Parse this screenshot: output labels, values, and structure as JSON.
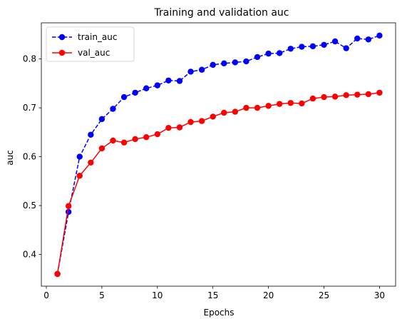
{
  "chart_data": {
    "type": "line",
    "title": "Training and validation auc",
    "xlabel": "Epochs",
    "ylabel": "auc",
    "xlim": [
      -0.45,
      31.45
    ],
    "ylim": [
      0.335,
      0.874
    ],
    "xticks": [
      0,
      5,
      10,
      15,
      20,
      25,
      30
    ],
    "yticks": [
      0.4,
      0.5,
      0.6,
      0.7,
      0.8
    ],
    "grid": false,
    "legend_position": "top-left",
    "x": [
      1,
      2,
      3,
      4,
      5,
      6,
      7,
      8,
      9,
      10,
      11,
      12,
      13,
      14,
      15,
      16,
      17,
      18,
      19,
      20,
      21,
      22,
      23,
      24,
      25,
      26,
      27,
      28,
      29,
      30
    ],
    "series": [
      {
        "name": "train_auc",
        "color": "#0000ff",
        "line_style": "dashed",
        "marker": "circle",
        "values": [
          0.36,
          0.487,
          0.6,
          0.645,
          0.677,
          0.698,
          0.722,
          0.731,
          0.74,
          0.746,
          0.756,
          0.755,
          0.774,
          0.778,
          0.788,
          0.791,
          0.793,
          0.795,
          0.804,
          0.811,
          0.812,
          0.821,
          0.825,
          0.826,
          0.829,
          0.836,
          0.822,
          0.842,
          0.84,
          0.848
        ]
      },
      {
        "name": "val_auc",
        "color": "#ff0000",
        "line_style": "solid",
        "marker": "circle",
        "values": [
          0.36,
          0.499,
          0.561,
          0.588,
          0.617,
          0.633,
          0.629,
          0.636,
          0.64,
          0.646,
          0.659,
          0.66,
          0.671,
          0.673,
          0.682,
          0.69,
          0.692,
          0.7,
          0.7,
          0.704,
          0.708,
          0.71,
          0.709,
          0.719,
          0.722,
          0.723,
          0.726,
          0.727,
          0.728,
          0.731
        ]
      }
    ]
  }
}
